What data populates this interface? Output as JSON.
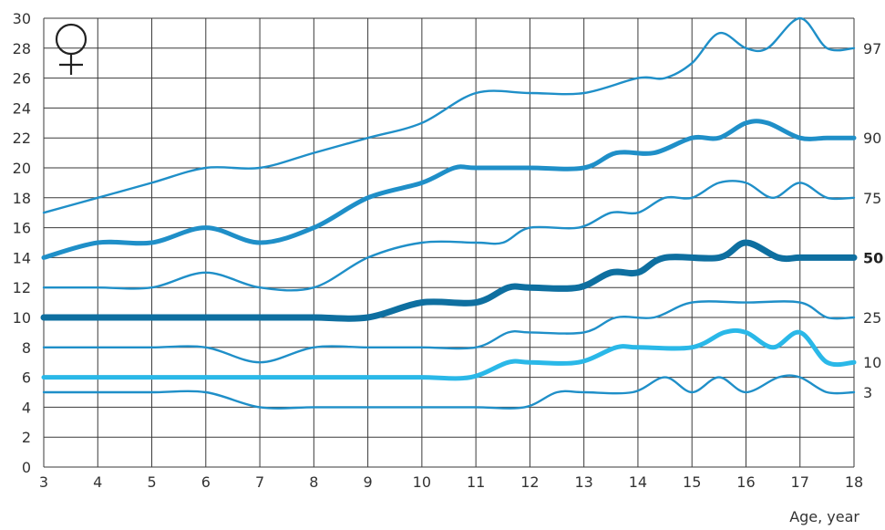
{
  "chart_data": {
    "type": "line",
    "title": "",
    "xlabel": "Age, year",
    "ylabel": "",
    "xlim": [
      3,
      18
    ],
    "ylim": [
      0,
      30
    ],
    "x_ticks": [
      3,
      4,
      5,
      6,
      7,
      8,
      9,
      10,
      11,
      12,
      13,
      14,
      15,
      16,
      17,
      18
    ],
    "y_ticks": [
      0,
      2,
      4,
      6,
      8,
      10,
      12,
      14,
      16,
      18,
      20,
      22,
      24,
      26,
      28,
      30
    ],
    "grid": true,
    "legend": "none",
    "symbol": "♀",
    "series": [
      {
        "name": "97",
        "label_bold": false,
        "color": "#1f8fc8",
        "weight": "thin",
        "points": [
          [
            3,
            17
          ],
          [
            4,
            18
          ],
          [
            5,
            19
          ],
          [
            6,
            20
          ],
          [
            7,
            20
          ],
          [
            8,
            21
          ],
          [
            9,
            22
          ],
          [
            10,
            23
          ],
          [
            11,
            25
          ],
          [
            12,
            25
          ],
          [
            13,
            25
          ],
          [
            14,
            26
          ],
          [
            14.5,
            26
          ],
          [
            15,
            27
          ],
          [
            15.5,
            29
          ],
          [
            16,
            28
          ],
          [
            16.4,
            28
          ],
          [
            17,
            30
          ],
          [
            17.5,
            28
          ],
          [
            18,
            28
          ]
        ]
      },
      {
        "name": "90",
        "label_bold": false,
        "color": "#1f8fc8",
        "weight": "medium",
        "points": [
          [
            3,
            14
          ],
          [
            4,
            15
          ],
          [
            5,
            15
          ],
          [
            6,
            16
          ],
          [
            7,
            15
          ],
          [
            8,
            16
          ],
          [
            9,
            18
          ],
          [
            10,
            19
          ],
          [
            10.6,
            20
          ],
          [
            11,
            20
          ],
          [
            12,
            20
          ],
          [
            13,
            20
          ],
          [
            13.6,
            21
          ],
          [
            14.3,
            21
          ],
          [
            15,
            22
          ],
          [
            15.5,
            22
          ],
          [
            16,
            23
          ],
          [
            16.4,
            23
          ],
          [
            17,
            22
          ],
          [
            17.5,
            22
          ],
          [
            18,
            22
          ]
        ]
      },
      {
        "name": "75",
        "label_bold": false,
        "color": "#1f8fc8",
        "weight": "thin",
        "points": [
          [
            3,
            12
          ],
          [
            4,
            12
          ],
          [
            5,
            12
          ],
          [
            6,
            13
          ],
          [
            7,
            12
          ],
          [
            8,
            12
          ],
          [
            9,
            14
          ],
          [
            10,
            15
          ],
          [
            11,
            15
          ],
          [
            11.5,
            15
          ],
          [
            12,
            16
          ],
          [
            12.9,
            16
          ],
          [
            13.5,
            17
          ],
          [
            14,
            17
          ],
          [
            14.5,
            18
          ],
          [
            15,
            18
          ],
          [
            15.5,
            19
          ],
          [
            16,
            19
          ],
          [
            16.5,
            18
          ],
          [
            17,
            19
          ],
          [
            17.5,
            18
          ],
          [
            18,
            18
          ]
        ]
      },
      {
        "name": "50",
        "label_bold": true,
        "color": "#0e6fa0",
        "weight": "bold",
        "points": [
          [
            3,
            10
          ],
          [
            4,
            10
          ],
          [
            5,
            10
          ],
          [
            6,
            10
          ],
          [
            7,
            10
          ],
          [
            8,
            10
          ],
          [
            9,
            10
          ],
          [
            10,
            11
          ],
          [
            11,
            11
          ],
          [
            11.6,
            12
          ],
          [
            12,
            12
          ],
          [
            12.9,
            12
          ],
          [
            13.5,
            13
          ],
          [
            14,
            13
          ],
          [
            14.5,
            14
          ],
          [
            15.5,
            14
          ],
          [
            16,
            15
          ],
          [
            16.6,
            14
          ],
          [
            17,
            14
          ],
          [
            17.5,
            14
          ],
          [
            18,
            14
          ]
        ]
      },
      {
        "name": "25",
        "label_bold": false,
        "color": "#1f8fc8",
        "weight": "thin",
        "points": [
          [
            3,
            8
          ],
          [
            4,
            8
          ],
          [
            5,
            8
          ],
          [
            6,
            8
          ],
          [
            7,
            7
          ],
          [
            8,
            8
          ],
          [
            9,
            8
          ],
          [
            10,
            8
          ],
          [
            11,
            8
          ],
          [
            11.6,
            9
          ],
          [
            12,
            9
          ],
          [
            13,
            9
          ],
          [
            13.6,
            10
          ],
          [
            14.3,
            10
          ],
          [
            15,
            11
          ],
          [
            16,
            11
          ],
          [
            17,
            11
          ],
          [
            17.5,
            10
          ],
          [
            18,
            10
          ]
        ]
      },
      {
        "name": "10",
        "label_bold": false,
        "color": "#2ab8e8",
        "weight": "medium",
        "points": [
          [
            3,
            6
          ],
          [
            4,
            6
          ],
          [
            5,
            6
          ],
          [
            6,
            6
          ],
          [
            7,
            6
          ],
          [
            8,
            6
          ],
          [
            9,
            6
          ],
          [
            10,
            6
          ],
          [
            10.9,
            6
          ],
          [
            11.6,
            7
          ],
          [
            12,
            7
          ],
          [
            12.9,
            7
          ],
          [
            13.6,
            8
          ],
          [
            14,
            8
          ],
          [
            15,
            8
          ],
          [
            15.6,
            9
          ],
          [
            16,
            9
          ],
          [
            16.5,
            8
          ],
          [
            17,
            9
          ],
          [
            17.5,
            7
          ],
          [
            18,
            7
          ]
        ]
      },
      {
        "name": "3",
        "label_bold": false,
        "color": "#1f8fc8",
        "weight": "thin",
        "points": [
          [
            3,
            5
          ],
          [
            4,
            5
          ],
          [
            5,
            5
          ],
          [
            6,
            5
          ],
          [
            7,
            4
          ],
          [
            8,
            4
          ],
          [
            9,
            4
          ],
          [
            10,
            4
          ],
          [
            11,
            4
          ],
          [
            11.9,
            4
          ],
          [
            12.5,
            5
          ],
          [
            13,
            5
          ],
          [
            13.9,
            5
          ],
          [
            14.5,
            6
          ],
          [
            15,
            5
          ],
          [
            15.5,
            6
          ],
          [
            16,
            5
          ],
          [
            16.6,
            6
          ],
          [
            17,
            6
          ],
          [
            17.5,
            5
          ],
          [
            18,
            5
          ]
        ]
      }
    ]
  }
}
